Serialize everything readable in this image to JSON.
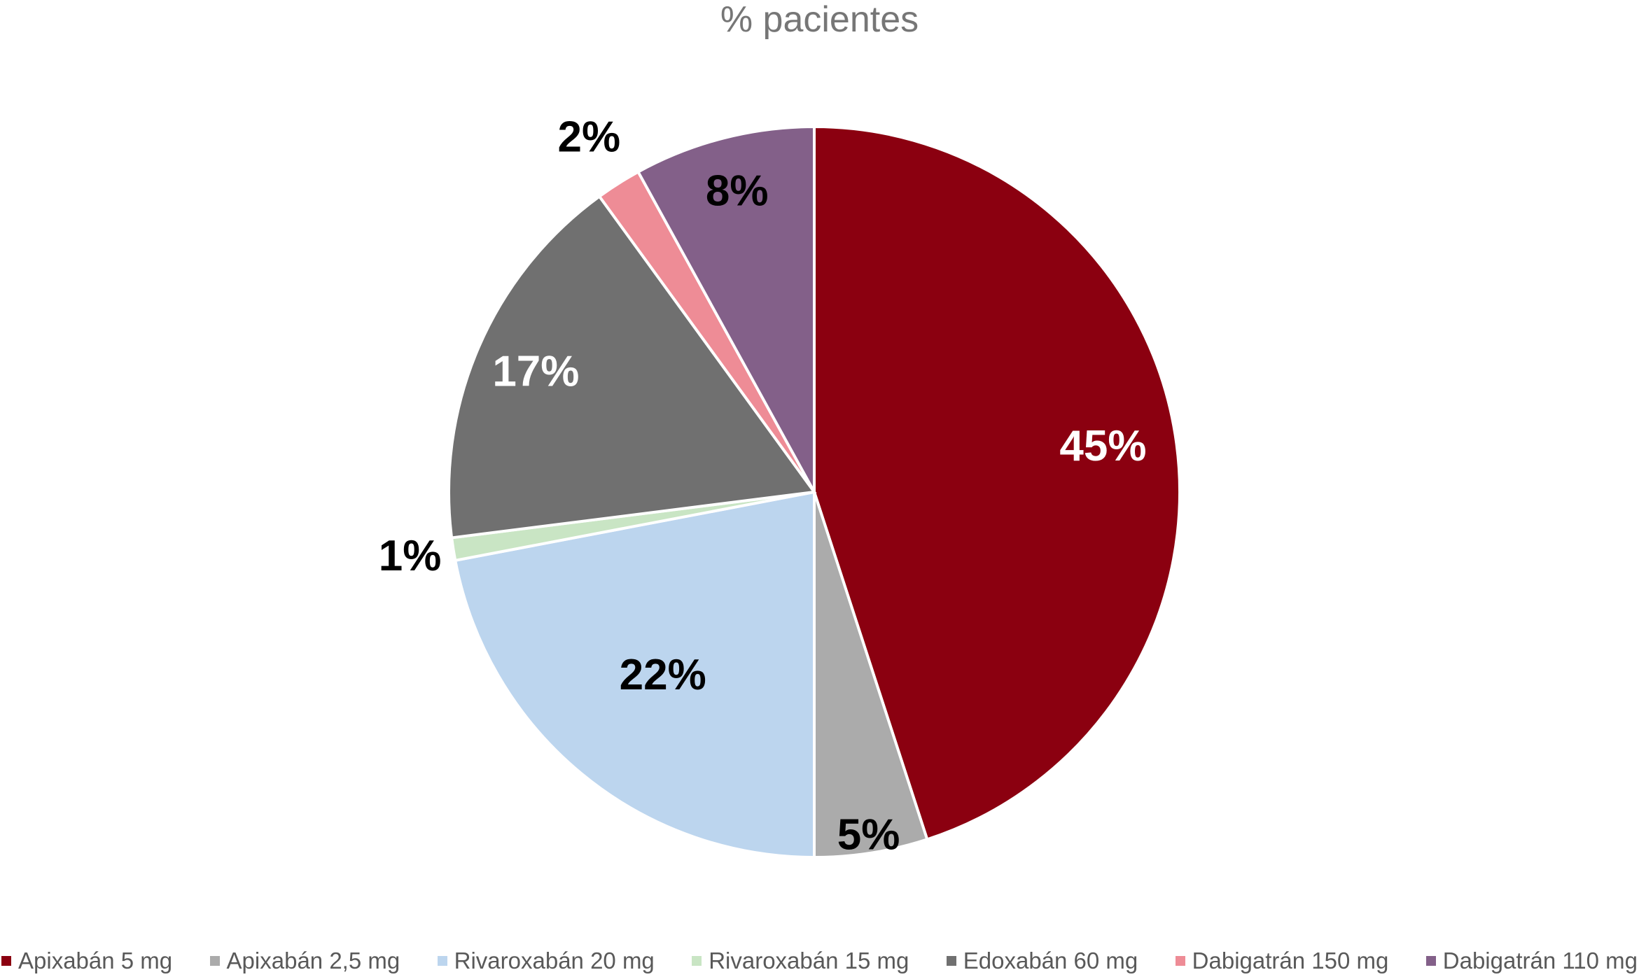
{
  "chart_data": {
    "type": "pie",
    "title": "% pacientes",
    "slices": [
      {
        "name": "Apixabán 5 mg",
        "value": 45,
        "label": "45%",
        "color": "#8B0010",
        "label_color": "#ffffff"
      },
      {
        "name": "Apixabán 2,5 mg",
        "value": 5,
        "label": "5%",
        "color": "#ABABAB",
        "label_color": "#000000"
      },
      {
        "name": "Rivaroxabán 20 mg",
        "value": 22,
        "label": "22%",
        "color": "#BCD5EE",
        "label_color": "#000000"
      },
      {
        "name": "Rivaroxabán 15 mg",
        "value": 1,
        "label": "1%",
        "color": "#C9E5C4",
        "label_color": "#000000"
      },
      {
        "name": "Edoxabán 60 mg",
        "value": 17,
        "label": "17%",
        "color": "#707070",
        "label_color": "#ffffff"
      },
      {
        "name": "Dabigatrán 150 mg",
        "value": 2,
        "label": "2%",
        "color": "#EE8C96",
        "label_color": "#000000"
      },
      {
        "name": "Dabigatrán 110 mg",
        "value": 8,
        "label": "8%",
        "color": "#836089",
        "label_color": "#000000"
      }
    ],
    "legend_position": "bottom"
  }
}
